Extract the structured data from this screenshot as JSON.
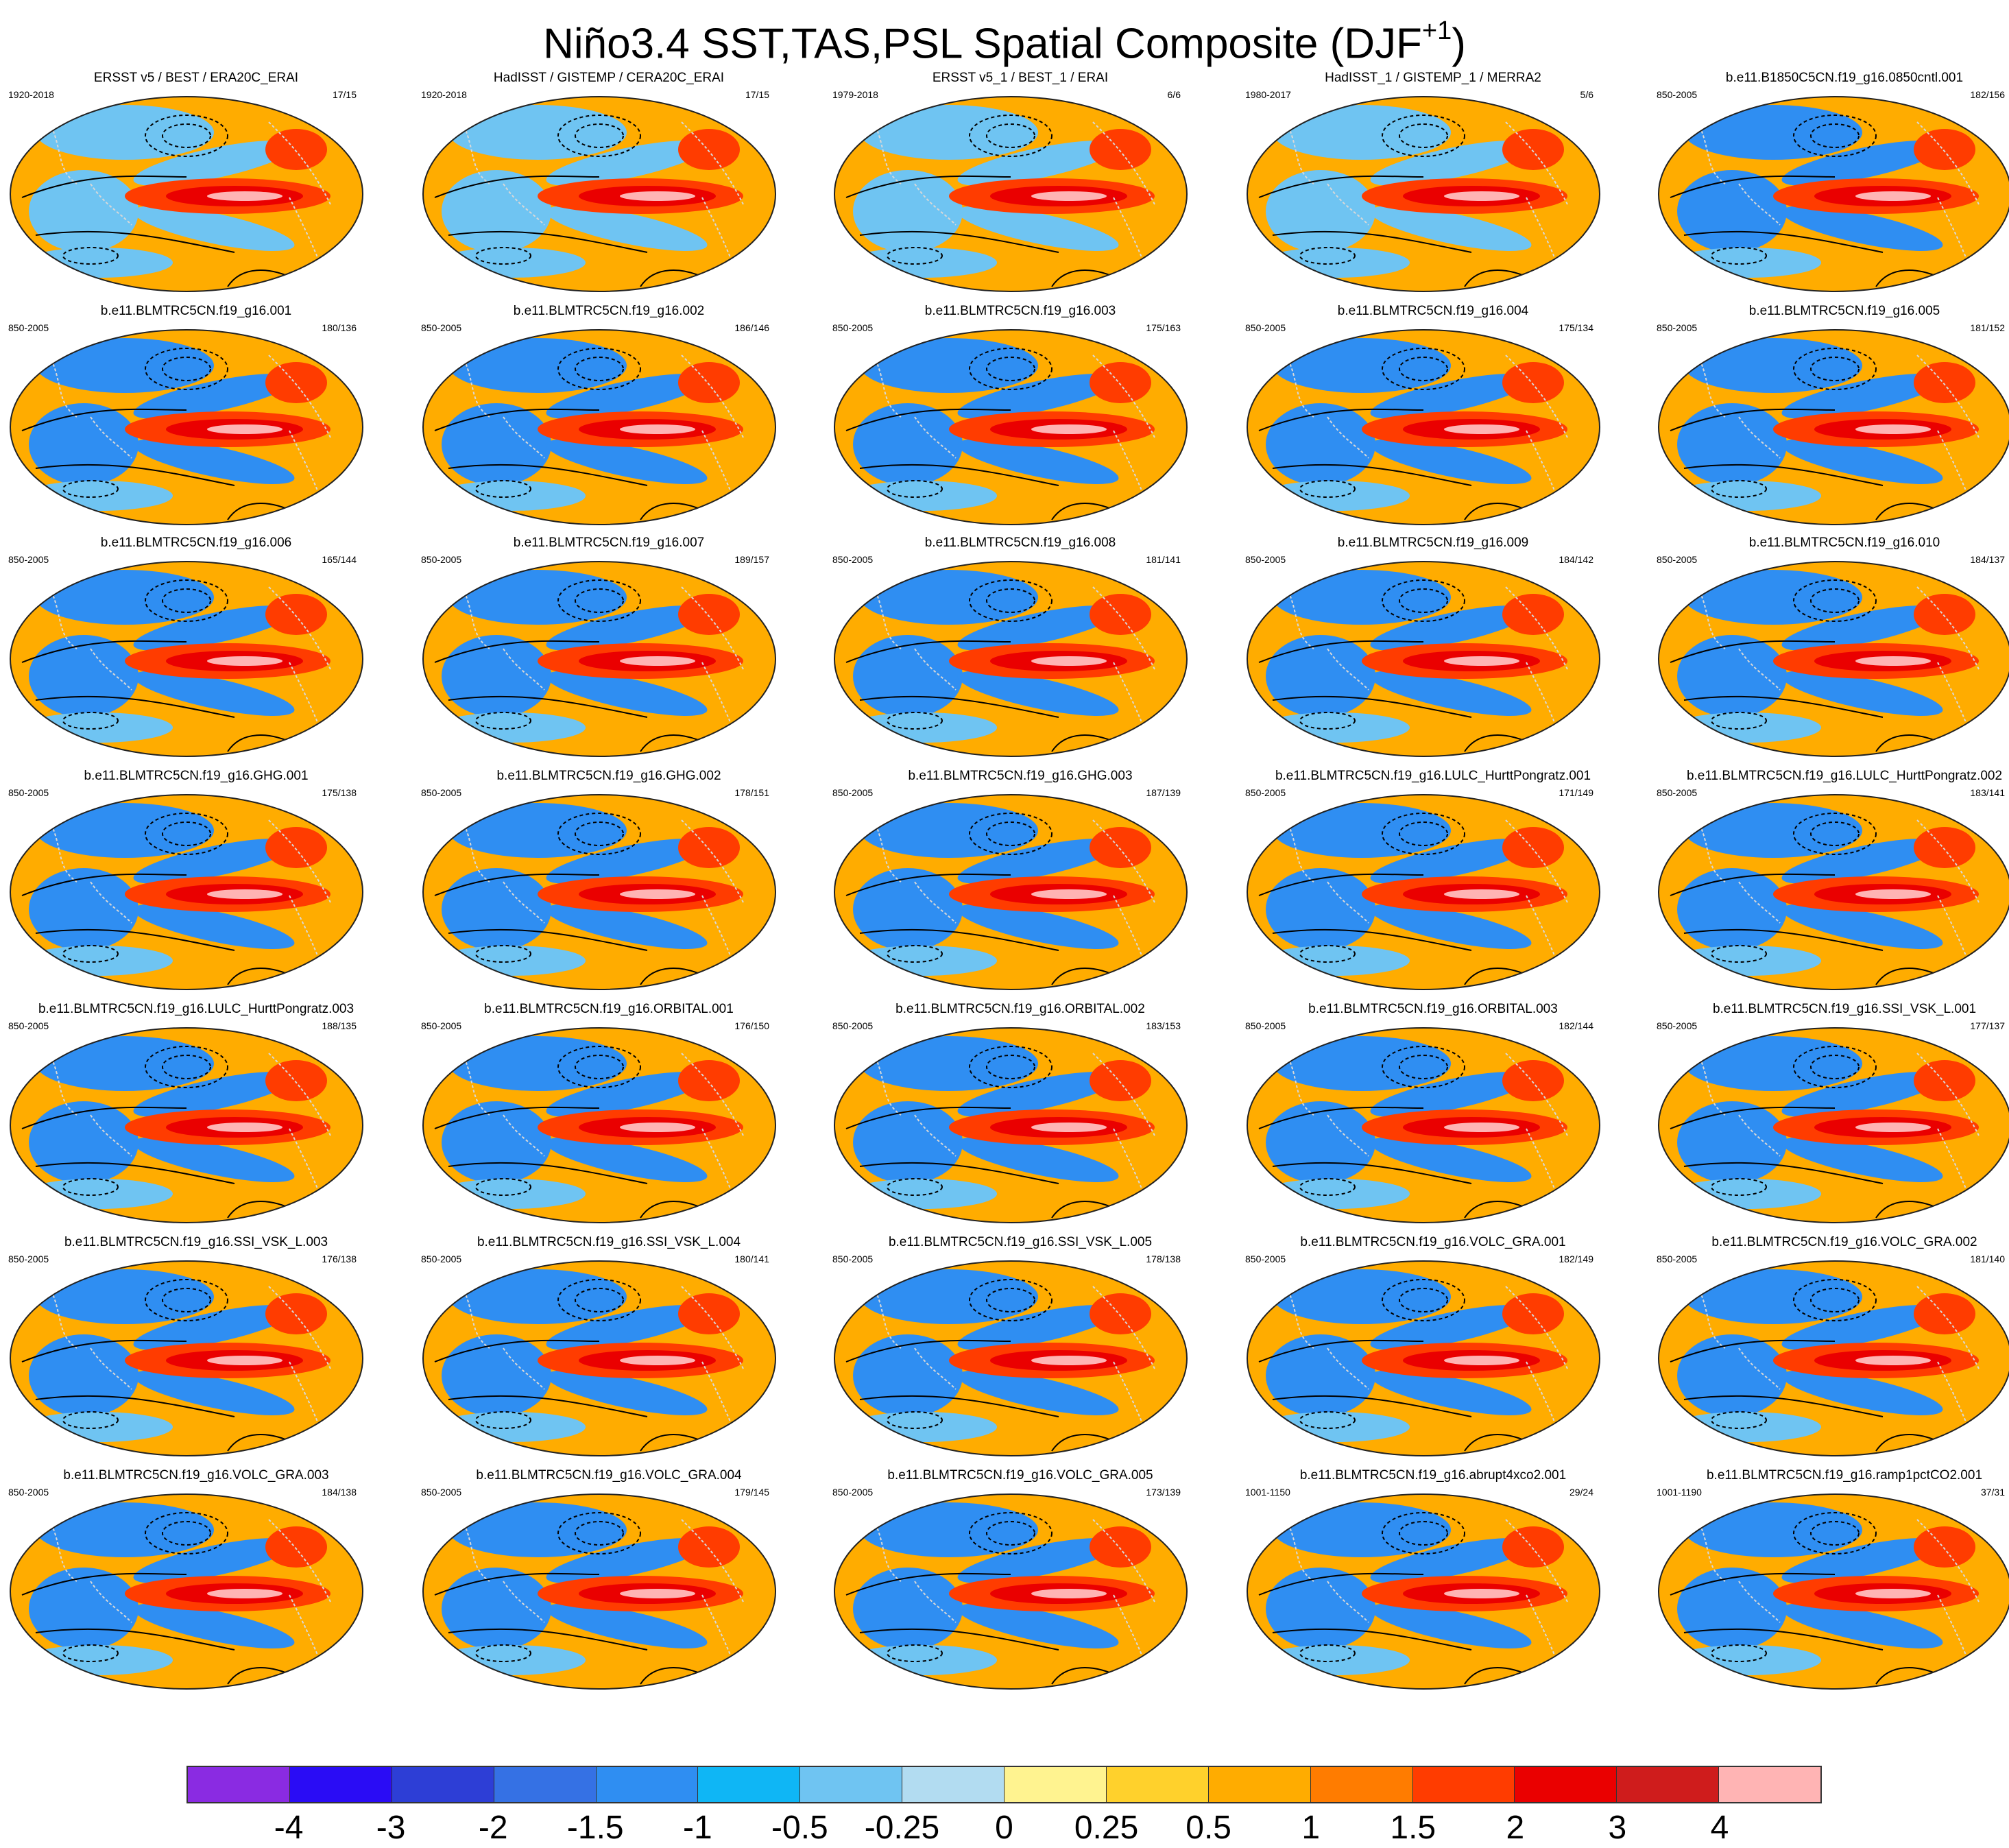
{
  "title": "Niño3.4 SST,TAS,PSL Spatial Composite (DJF",
  "title_superscript": "+1",
  "title_suffix": ")",
  "panels": [
    {
      "title": "ERSST v5 / BEST / ERA20C_ERAI",
      "period": "1920-2018",
      "count": "17/15"
    },
    {
      "title": "HadISST / GISTEMP / CERA20C_ERAI",
      "period": "1920-2018",
      "count": "17/15"
    },
    {
      "title": "ERSST v5_1 / BEST_1 / ERAI",
      "period": "1979-2018",
      "count": "6/6"
    },
    {
      "title": "HadISST_1 / GISTEMP_1 / MERRA2",
      "period": "1980-2017",
      "count": "5/6"
    },
    {
      "title": "b.e11.B1850C5CN.f19_g16.0850cntl.001",
      "period": "850-2005",
      "count": "182/156"
    },
    {
      "title": "b.e11.BLMTRC5CN.f19_g16.001",
      "period": "850-2005",
      "count": "180/136"
    },
    {
      "title": "b.e11.BLMTRC5CN.f19_g16.002",
      "period": "850-2005",
      "count": "186/146"
    },
    {
      "title": "b.e11.BLMTRC5CN.f19_g16.003",
      "period": "850-2005",
      "count": "175/163"
    },
    {
      "title": "b.e11.BLMTRC5CN.f19_g16.004",
      "period": "850-2005",
      "count": "175/134"
    },
    {
      "title": "b.e11.BLMTRC5CN.f19_g16.005",
      "period": "850-2005",
      "count": "181/152"
    },
    {
      "title": "b.e11.BLMTRC5CN.f19_g16.006",
      "period": "850-2005",
      "count": "165/144"
    },
    {
      "title": "b.e11.BLMTRC5CN.f19_g16.007",
      "period": "850-2005",
      "count": "189/157"
    },
    {
      "title": "b.e11.BLMTRC5CN.f19_g16.008",
      "period": "850-2005",
      "count": "181/141"
    },
    {
      "title": "b.e11.BLMTRC5CN.f19_g16.009",
      "period": "850-2005",
      "count": "184/142"
    },
    {
      "title": "b.e11.BLMTRC5CN.f19_g16.010",
      "period": "850-2005",
      "count": "184/137"
    },
    {
      "title": "b.e11.BLMTRC5CN.f19_g16.GHG.001",
      "period": "850-2005",
      "count": "175/138"
    },
    {
      "title": "b.e11.BLMTRC5CN.f19_g16.GHG.002",
      "period": "850-2005",
      "count": "178/151"
    },
    {
      "title": "b.e11.BLMTRC5CN.f19_g16.GHG.003",
      "period": "850-2005",
      "count": "187/139"
    },
    {
      "title": "b.e11.BLMTRC5CN.f19_g16.LULC_HurttPongratz.001",
      "period": "850-2005",
      "count": "171/149"
    },
    {
      "title": "b.e11.BLMTRC5CN.f19_g16.LULC_HurttPongratz.002",
      "period": "850-2005",
      "count": "183/141"
    },
    {
      "title": "b.e11.BLMTRC5CN.f19_g16.LULC_HurttPongratz.003",
      "period": "850-2005",
      "count": "188/135"
    },
    {
      "title": "b.e11.BLMTRC5CN.f19_g16.ORBITAL.001",
      "period": "850-2005",
      "count": "176/150"
    },
    {
      "title": "b.e11.BLMTRC5CN.f19_g16.ORBITAL.002",
      "period": "850-2005",
      "count": "183/153"
    },
    {
      "title": "b.e11.BLMTRC5CN.f19_g16.ORBITAL.003",
      "period": "850-2005",
      "count": "182/144"
    },
    {
      "title": "b.e11.BLMTRC5CN.f19_g16.SSI_VSK_L.001",
      "period": "850-2005",
      "count": "177/137"
    },
    {
      "title": "b.e11.BLMTRC5CN.f19_g16.SSI_VSK_L.003",
      "period": "850-2005",
      "count": "176/138"
    },
    {
      "title": "b.e11.BLMTRC5CN.f19_g16.SSI_VSK_L.004",
      "period": "850-2005",
      "count": "180/141"
    },
    {
      "title": "b.e11.BLMTRC5CN.f19_g16.SSI_VSK_L.005",
      "period": "850-2005",
      "count": "178/138"
    },
    {
      "title": "b.e11.BLMTRC5CN.f19_g16.VOLC_GRA.001",
      "period": "850-2005",
      "count": "182/149"
    },
    {
      "title": "b.e11.BLMTRC5CN.f19_g16.VOLC_GRA.002",
      "period": "850-2005",
      "count": "181/140"
    },
    {
      "title": "b.e11.BLMTRC5CN.f19_g16.VOLC_GRA.003",
      "period": "850-2005",
      "count": "184/138"
    },
    {
      "title": "b.e11.BLMTRC5CN.f19_g16.VOLC_GRA.004",
      "period": "850-2005",
      "count": "179/145"
    },
    {
      "title": "b.e11.BLMTRC5CN.f19_g16.VOLC_GRA.005",
      "period": "850-2005",
      "count": "173/139"
    },
    {
      "title": "b.e11.BLMTRC5CN.f19_g16.abrupt4xco2.001",
      "period": "1001-1150",
      "count": "29/24"
    },
    {
      "title": "b.e11.BLMTRC5CN.f19_g16.ramp1pctCO2.001",
      "period": "1001-1190",
      "count": "37/31"
    }
  ],
  "colorbar": {
    "colors": [
      "#8a2be2",
      "#2a0cf5",
      "#2d3ed6",
      "#3571e4",
      "#2f8ef2",
      "#0fb6f5",
      "#6fc4f2",
      "#b2dcf1",
      "#fff390",
      "#ffd12c",
      "#ffac00",
      "#ff7c00",
      "#ff3c00",
      "#ea0000",
      "#cf1c1c",
      "#ffb4b4"
    ],
    "labels": [
      "-4",
      "-3",
      "-2",
      "-1.5",
      "-1",
      "-0.5",
      "-0.25",
      "0",
      "0.25",
      "0.5",
      "1",
      "1.5",
      "2",
      "3",
      "4"
    ]
  },
  "map_style": {
    "background": "#ffac00",
    "equatorial_warm": "#ff3c00",
    "core": "#ea0000",
    "core_center": "#ffb4b4",
    "cool": "#2f8ef2",
    "cool_light": "#6fc4f2",
    "land_outline": "#d8d8d8"
  }
}
